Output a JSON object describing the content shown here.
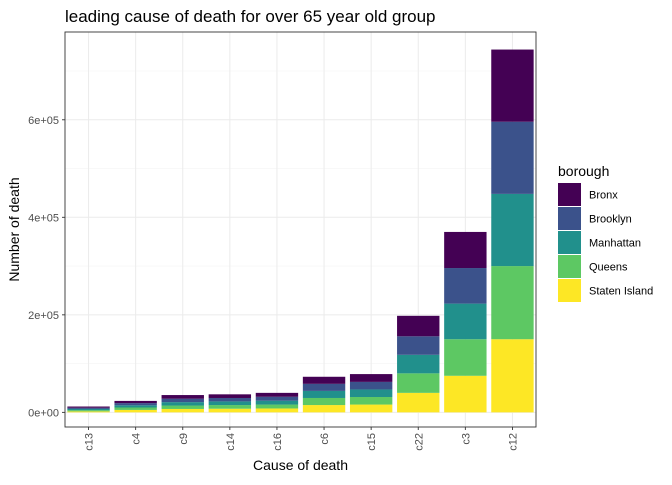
{
  "chart_data": {
    "type": "bar",
    "stacked": true,
    "title": "leading cause of death for over 65 year old group",
    "xlabel": "Cause of death",
    "ylabel": "Number of death",
    "categories": [
      "c13",
      "c4",
      "c9",
      "c14",
      "c16",
      "c6",
      "c15",
      "c22",
      "c3",
      "c12"
    ],
    "ylim": [
      -30000,
      780000
    ],
    "yticks": [
      0,
      200000,
      400000,
      600000
    ],
    "ytick_labels": [
      "0e+00",
      "2e+05",
      "4e+05",
      "6e+05"
    ],
    "grid": true,
    "legend": {
      "title": "borough",
      "position": "right"
    },
    "series": [
      {
        "name": "Staten Island",
        "color": "#FDE725",
        "values": [
          2000,
          5000,
          7000,
          7500,
          8000,
          15000,
          16000,
          40000,
          75000,
          150000
        ]
      },
      {
        "name": "Queens",
        "color": "#5DC863",
        "values": [
          2500,
          5000,
          7000,
          7500,
          8000,
          14500,
          15500,
          40000,
          75000,
          150000
        ]
      },
      {
        "name": "Manhattan",
        "color": "#21908C",
        "values": [
          2500,
          4500,
          7000,
          7500,
          8000,
          14500,
          15500,
          38000,
          73000,
          148000
        ]
      },
      {
        "name": "Brooklyn",
        "color": "#3B528B",
        "values": [
          2500,
          4500,
          7000,
          7000,
          8000,
          14500,
          15500,
          38000,
          73000,
          148000
        ]
      },
      {
        "name": "Bronx",
        "color": "#440154",
        "values": [
          2500,
          4500,
          7500,
          7500,
          8000,
          14500,
          16000,
          42000,
          74000,
          148000
        ]
      }
    ]
  }
}
